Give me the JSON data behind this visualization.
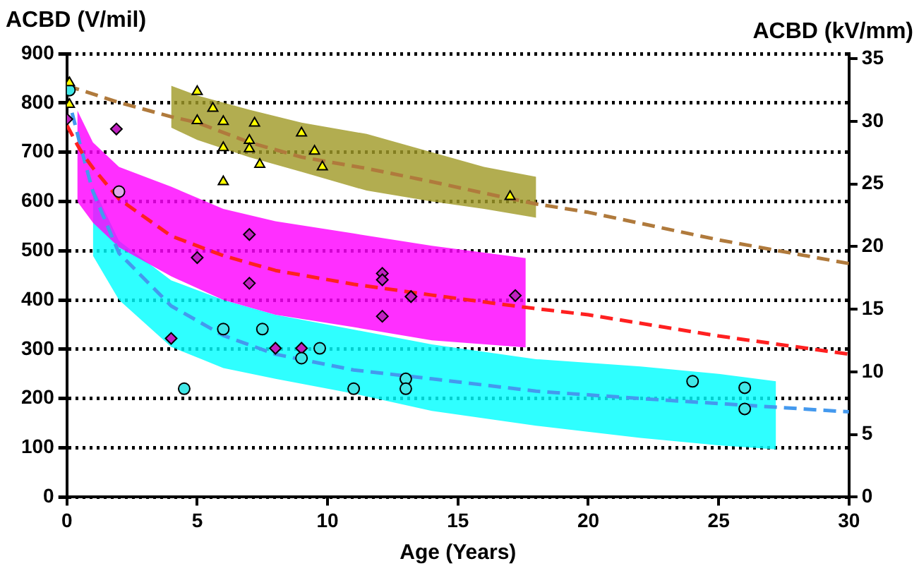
{
  "chart_data": {
    "type": "line",
    "xlabel": "Age (Years)",
    "ylabel": "ACBD (V/mil)",
    "y2label": "ACBD (kV/mm)",
    "xlim": [
      0,
      30
    ],
    "xticks": [
      0,
      5,
      10,
      15,
      20,
      25,
      30
    ],
    "ylim": [
      0,
      900
    ],
    "yticks": [
      0,
      100,
      200,
      300,
      400,
      500,
      600,
      700,
      800,
      900
    ],
    "y2lim": [
      0,
      35.4
    ],
    "y2ticks": [
      0,
      5,
      10,
      15,
      20,
      25,
      30,
      35
    ],
    "grid": "y",
    "legend": false,
    "series": [
      {
        "type": "line",
        "color": "#a09a28",
        "x": [
          4,
          5,
          7,
          9,
          11.5,
          14,
          16,
          18
        ],
        "values": [
          null,
          null,
          null,
          null,
          null,
          null,
          null,
          null
        ],
        "lower": [
          750,
          725,
          690,
          660,
          622,
          600,
          585,
          567
        ],
        "upper": [
          835,
          815,
          786,
          760,
          737,
          700,
          670,
          650
        ]
      },
      {
        "type": "line",
        "color": "#ff00ff",
        "x": [
          0.4,
          1,
          2,
          4,
          6,
          8,
          11,
          14,
          17.6
        ],
        "values": [
          null,
          null,
          null,
          null,
          null,
          null,
          null,
          null,
          null
        ],
        "lower": [
          600,
          557,
          507,
          448,
          400,
          370,
          345,
          318,
          304
        ],
        "upper": [
          785,
          720,
          670,
          630,
          585,
          560,
          535,
          510,
          485
        ]
      },
      {
        "type": "line",
        "color": "#00ffff",
        "x": [
          1,
          2,
          4,
          6,
          8,
          11,
          14,
          18,
          22,
          25,
          27.2
        ],
        "values": [
          null,
          null,
          null,
          null,
          null,
          null,
          null,
          null,
          null,
          null,
          null
        ],
        "lower": [
          490,
          400,
          305,
          262,
          240,
          210,
          175,
          145,
          120,
          105,
          97
        ],
        "upper": [
          630,
          520,
          440,
          400,
          370,
          340,
          310,
          280,
          265,
          250,
          235
        ]
      },
      {
        "type": "line",
        "color": "#b07a3c",
        "line_style": "dashed",
        "x": [
          0,
          2,
          4,
          5,
          7,
          9,
          11.5,
          14,
          16,
          18,
          20,
          25,
          30
        ],
        "values": [
          835,
          801,
          772,
          760,
          720,
          690,
          667,
          640,
          617,
          595,
          578,
          522,
          474
        ]
      },
      {
        "type": "line",
        "color": "#ff2020",
        "line_style": "dashed",
        "x": [
          0,
          0.4,
          0.6,
          1,
          2,
          4,
          6,
          8,
          11,
          14,
          17.6,
          20,
          25,
          30
        ],
        "values": [
          755,
          715,
          697,
          668,
          605,
          530,
          490,
          460,
          432,
          410,
          385,
          370,
          327,
          290
        ]
      },
      {
        "type": "line",
        "color": "#4499ee",
        "line_style": "dashed",
        "x": [
          0.2,
          0.55,
          1,
          2,
          4,
          6,
          8,
          11,
          14,
          18,
          22,
          25,
          30
        ],
        "values": [
          780,
          707,
          620,
          495,
          388,
          328,
          290,
          258,
          240,
          215,
          200,
          190,
          173
        ]
      },
      {
        "type": "scatter",
        "marker": "triangle",
        "color": "#ffff00",
        "x": [
          0.1,
          0.1,
          5,
          5,
          5.6,
          6,
          6,
          6,
          7,
          7,
          7.2,
          7.4,
          9,
          9.5,
          9.8,
          17
        ],
        "values": [
          841,
          797,
          823,
          764,
          789,
          762,
          709,
          640,
          724,
          707,
          759,
          675,
          739,
          702,
          670,
          610
        ]
      },
      {
        "type": "scatter",
        "marker": "circle",
        "color": "#40e8e8",
        "x": [
          0.1,
          4.5,
          6,
          7.5,
          9,
          9.7,
          11,
          13,
          13,
          24,
          26,
          26
        ],
        "values": [
          826,
          220,
          341,
          341,
          282,
          302,
          220,
          240,
          220,
          235,
          222,
          179
        ]
      },
      {
        "type": "scatter",
        "marker": "diamond",
        "color": "#c020c0",
        "x": [
          0,
          1.9,
          4,
          5,
          7,
          7,
          8,
          9,
          12.1,
          12.1,
          12.1,
          13.2,
          17.2
        ],
        "values": [
          767,
          747,
          322,
          486,
          533,
          434,
          302,
          302,
          454,
          441,
          367,
          407,
          409
        ]
      },
      {
        "type": "scatter",
        "marker": "circle",
        "color": "#e0a8e8",
        "x": [
          2
        ],
        "values": [
          620
        ]
      }
    ]
  }
}
